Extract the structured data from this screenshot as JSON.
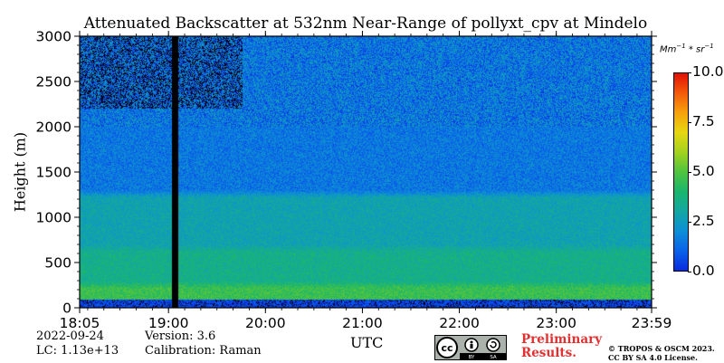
{
  "chart_data": {
    "type": "heatmap",
    "title": "Attenuated Backscatter at 532nm Near-Range of pollyxt_cpv at Mindelo",
    "ylabel": "Height (m)",
    "xlabel": "UTC",
    "x_range": [
      "18:05",
      "23:59"
    ],
    "ylim": [
      0,
      3000
    ],
    "x_tick_labels": [
      "18:05",
      "19:00",
      "20:00",
      "21:00",
      "22:00",
      "23:00",
      "23:59"
    ],
    "y_tick_labels": [
      "0",
      "500",
      "1000",
      "1500",
      "2000",
      "2500",
      "3000"
    ],
    "colorbar": {
      "unit_label": "Mm^-1 * sr^-1",
      "range": [
        0,
        10
      ],
      "tick_labels": [
        "0.0",
        "2.5",
        "5.0",
        "7.5",
        "10.0"
      ]
    },
    "gap_time_utc": "19:04",
    "layers": [
      {
        "height_range_m": [
          0,
          100
        ],
        "value": 0.4
      },
      {
        "height_range_m": [
          100,
          300
        ],
        "value": 4.6
      },
      {
        "height_range_m": [
          300,
          700
        ],
        "value": 3.5
      },
      {
        "height_range_m": [
          700,
          1300
        ],
        "value": 2.8
      },
      {
        "height_range_m": [
          1300,
          3000
        ],
        "value": 1.5
      }
    ]
  },
  "footer": {
    "date": "2022-09-24",
    "lc": "LC: 1.13e+13",
    "version": "Version: 3.6",
    "calibration": "Calibration: Raman",
    "preliminary_line1": "Preliminary",
    "preliminary_line2": "Results.",
    "copyright_line1": "© TROPOS & OSCM 2023.",
    "copyright_line2": "CC BY SA 4.0 License.",
    "license_badge": {
      "icons": [
        "cc-icon",
        "by-icon",
        "sa-icon"
      ],
      "labels": [
        "BY",
        "SA"
      ]
    }
  }
}
